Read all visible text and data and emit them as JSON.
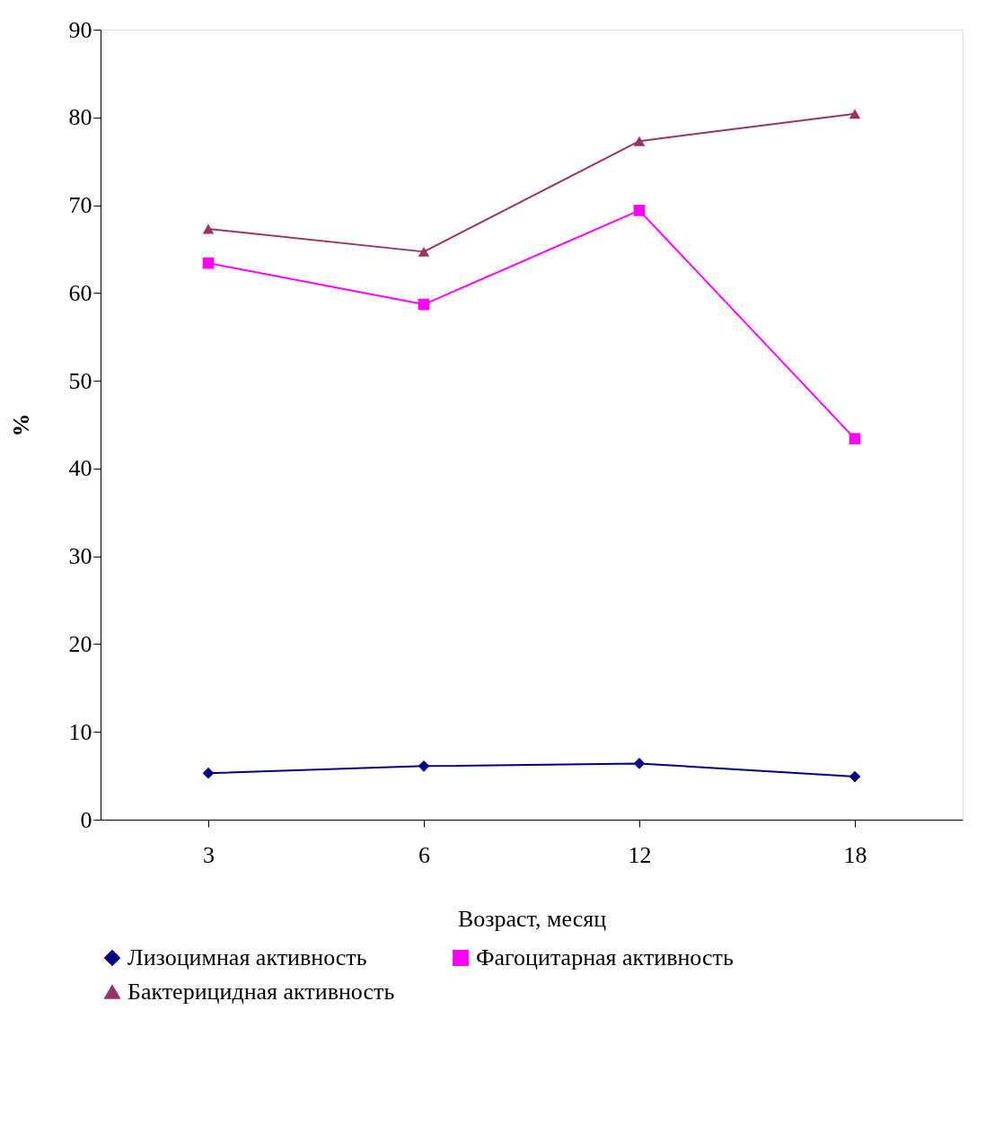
{
  "chart_data": {
    "type": "line",
    "xlabel": "Возраст, месяц",
    "ylabel": "%",
    "categories": [
      "3",
      "6",
      "12",
      "18"
    ],
    "series": [
      {
        "name": "Лизоцимная активность",
        "color": "#000080",
        "marker": "diamond",
        "values": [
          5.3,
          6.1,
          6.4,
          4.9
        ]
      },
      {
        "name": "Фагоцитарная активность",
        "color": "#ff00ff",
        "marker": "square",
        "values": [
          63.4,
          58.7,
          69.4,
          43.4
        ]
      },
      {
        "name": "Бактерицидная активность",
        "color": "#993366",
        "marker": "triangle",
        "values": [
          67.3,
          64.7,
          77.3,
          80.4
        ]
      }
    ],
    "ylim": [
      0,
      90
    ],
    "yticks": [
      0,
      10,
      20,
      30,
      40,
      50,
      60,
      70,
      80,
      90
    ],
    "grid": false,
    "legend": "bottom"
  }
}
